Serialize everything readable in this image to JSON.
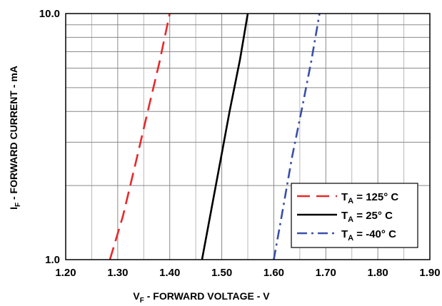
{
  "chart_data": {
    "type": "line",
    "title": "",
    "xlabel": {
      "main": "V",
      "sub": "F",
      "rest": " - FORWARD VOLTAGE - V"
    },
    "ylabel": {
      "main": "I",
      "sub": "F",
      "rest": " - FORWARD CURRENT - mA"
    },
    "xlim": [
      1.2,
      1.9
    ],
    "ylim": [
      1.0,
      10.0
    ],
    "yscale": "log",
    "grid": true,
    "legend_position": "bottom-right",
    "x_ticks": [
      "1.20",
      "1.30",
      "1.40",
      "1.50",
      "1.60",
      "1.70",
      "1.80",
      "1.90"
    ],
    "x_tick_values": [
      1.2,
      1.3,
      1.4,
      1.5,
      1.6,
      1.7,
      1.8,
      1.9
    ],
    "y_ticks": [
      "1.0",
      "10.0"
    ],
    "y_tick_values": [
      1.0,
      10.0
    ],
    "series": [
      {
        "legend": {
          "main": "T",
          "sub": "A",
          "rest": " = 125° C"
        },
        "color": "#e8282b",
        "dash": "long-dash",
        "points": [
          [
            1.285,
            1.0
          ],
          [
            1.31,
            1.5
          ],
          [
            1.335,
            2.5
          ],
          [
            1.36,
            4.2
          ],
          [
            1.38,
            6.3
          ],
          [
            1.4,
            10.0
          ]
        ]
      },
      {
        "legend": {
          "main": "T",
          "sub": "A",
          "rest": " = 25° C"
        },
        "color": "#000000",
        "dash": "solid",
        "points": [
          [
            1.462,
            1.0
          ],
          [
            1.48,
            1.6
          ],
          [
            1.5,
            2.7
          ],
          [
            1.515,
            4.0
          ],
          [
            1.535,
            6.5
          ],
          [
            1.55,
            10.0
          ]
        ]
      },
      {
        "legend": {
          "main": "T",
          "sub": "A",
          "rest": " = -40° C"
        },
        "color": "#3a4fa8",
        "dash": "dash-dot",
        "points": [
          [
            1.6,
            1.0
          ],
          [
            1.615,
            1.5
          ],
          [
            1.635,
            2.6
          ],
          [
            1.655,
            4.2
          ],
          [
            1.672,
            6.4
          ],
          [
            1.688,
            10.0
          ]
        ]
      }
    ]
  }
}
